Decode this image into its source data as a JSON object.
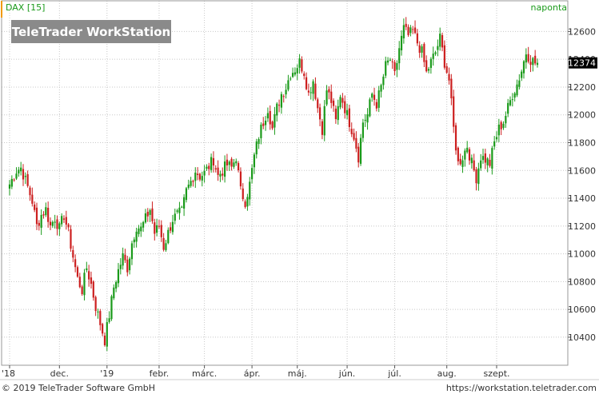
{
  "header": {
    "symbol_label": "DAX [15]",
    "watermark": "TeleTrader WorkStation",
    "period": "naponta"
  },
  "footer": {
    "copyright": "© 2019 TeleTrader Software GmbH",
    "url": "https://workstation.teletrader.com"
  },
  "colors": {
    "up": "#1a9a1a",
    "down": "#cc1f1f",
    "grid": "#c8c8c8",
    "accent": "#f29a00",
    "price_box": "#000000"
  },
  "chart_data": {
    "type": "candlestick",
    "title": "DAX [15]",
    "ylim": [
      10250,
      12700
    ],
    "y_ticks": [
      10400,
      10600,
      10800,
      11000,
      11200,
      11400,
      11600,
      11800,
      12000,
      12200,
      12400,
      12600
    ],
    "last_price": "12374",
    "x_labels": [
      {
        "label": "'18",
        "day": 0
      },
      {
        "label": "dec.",
        "day": 22
      },
      {
        "label": "'19",
        "day": 43
      },
      {
        "label": "febr.",
        "day": 66
      },
      {
        "label": "márc.",
        "day": 86
      },
      {
        "label": "ápr.",
        "day": 107
      },
      {
        "label": "máj.",
        "day": 127
      },
      {
        "label": "jún.",
        "day": 149
      },
      {
        "label": "júl.",
        "day": 170
      },
      {
        "label": "aug.",
        "day": 193
      },
      {
        "label": "szept.",
        "day": 215
      }
    ],
    "days_total": 233,
    "key_closes": [
      [
        0,
        11500
      ],
      [
        3,
        11600
      ],
      [
        5,
        11620
      ],
      [
        8,
        11480
      ],
      [
        10,
        11380
      ],
      [
        12,
        11200
      ],
      [
        14,
        11280
      ],
      [
        16,
        11320
      ],
      [
        18,
        11200
      ],
      [
        20,
        11260
      ],
      [
        22,
        11180
      ],
      [
        24,
        11280
      ],
      [
        26,
        11150
      ],
      [
        28,
        10980
      ],
      [
        30,
        10820
      ],
      [
        32,
        10740
      ],
      [
        34,
        10900
      ],
      [
        36,
        10780
      ],
      [
        38,
        10620
      ],
      [
        40,
        10500
      ],
      [
        42,
        10380
      ],
      [
        44,
        10560
      ],
      [
        46,
        10760
      ],
      [
        48,
        10880
      ],
      [
        50,
        10980
      ],
      [
        52,
        10900
      ],
      [
        54,
        11080
      ],
      [
        56,
        11200
      ],
      [
        58,
        11180
      ],
      [
        60,
        11250
      ],
      [
        62,
        11320
      ],
      [
        64,
        11150
      ],
      [
        66,
        11200
      ],
      [
        68,
        11050
      ],
      [
        70,
        11150
      ],
      [
        72,
        11250
      ],
      [
        74,
        11280
      ],
      [
        76,
        11300
      ],
      [
        78,
        11450
      ],
      [
        80,
        11520
      ],
      [
        82,
        11600
      ],
      [
        84,
        11560
      ],
      [
        86,
        11580
      ],
      [
        88,
        11630
      ],
      [
        90,
        11680
      ],
      [
        92,
        11560
      ],
      [
        94,
        11600
      ],
      [
        96,
        11640
      ],
      [
        98,
        11620
      ],
      [
        100,
        11700
      ],
      [
        102,
        11450
      ],
      [
        104,
        11380
      ],
      [
        106,
        11500
      ],
      [
        108,
        11700
      ],
      [
        110,
        11850
      ],
      [
        112,
        11950
      ],
      [
        114,
        12050
      ],
      [
        116,
        11900
      ],
      [
        118,
        12050
      ],
      [
        120,
        12150
      ],
      [
        122,
        12200
      ],
      [
        124,
        12300
      ],
      [
        126,
        12330
      ],
      [
        128,
        12380
      ],
      [
        130,
        12310
      ],
      [
        132,
        12150
      ],
      [
        134,
        12250
      ],
      [
        136,
        12050
      ],
      [
        138,
        11900
      ],
      [
        140,
        12180
      ],
      [
        142,
        12100
      ],
      [
        144,
        11950
      ],
      [
        146,
        12150
      ],
      [
        148,
        12050
      ],
      [
        150,
        11950
      ],
      [
        152,
        11850
      ],
      [
        154,
        11700
      ],
      [
        156,
        11950
      ],
      [
        158,
        12000
      ],
      [
        160,
        12150
      ],
      [
        162,
        12080
      ],
      [
        164,
        12200
      ],
      [
        166,
        12350
      ],
      [
        168,
        12400
      ],
      [
        170,
        12280
      ],
      [
        172,
        12480
      ],
      [
        174,
        12620
      ],
      [
        176,
        12570
      ],
      [
        178,
        12600
      ],
      [
        180,
        12520
      ],
      [
        182,
        12450
      ],
      [
        184,
        12300
      ],
      [
        186,
        12380
      ],
      [
        188,
        12450
      ],
      [
        190,
        12550
      ],
      [
        192,
        12380
      ],
      [
        194,
        12250
      ],
      [
        196,
        11900
      ],
      [
        198,
        11650
      ],
      [
        200,
        11700
      ],
      [
        202,
        11780
      ],
      [
        204,
        11650
      ],
      [
        206,
        11550
      ],
      [
        208,
        11700
      ],
      [
        210,
        11680
      ],
      [
        212,
        11650
      ],
      [
        214,
        11800
      ],
      [
        216,
        11900
      ],
      [
        218,
        11950
      ],
      [
        220,
        12050
      ],
      [
        222,
        12150
      ],
      [
        224,
        12220
      ],
      [
        226,
        12320
      ],
      [
        228,
        12450
      ],
      [
        230,
        12400
      ],
      [
        232,
        12374
      ]
    ]
  }
}
